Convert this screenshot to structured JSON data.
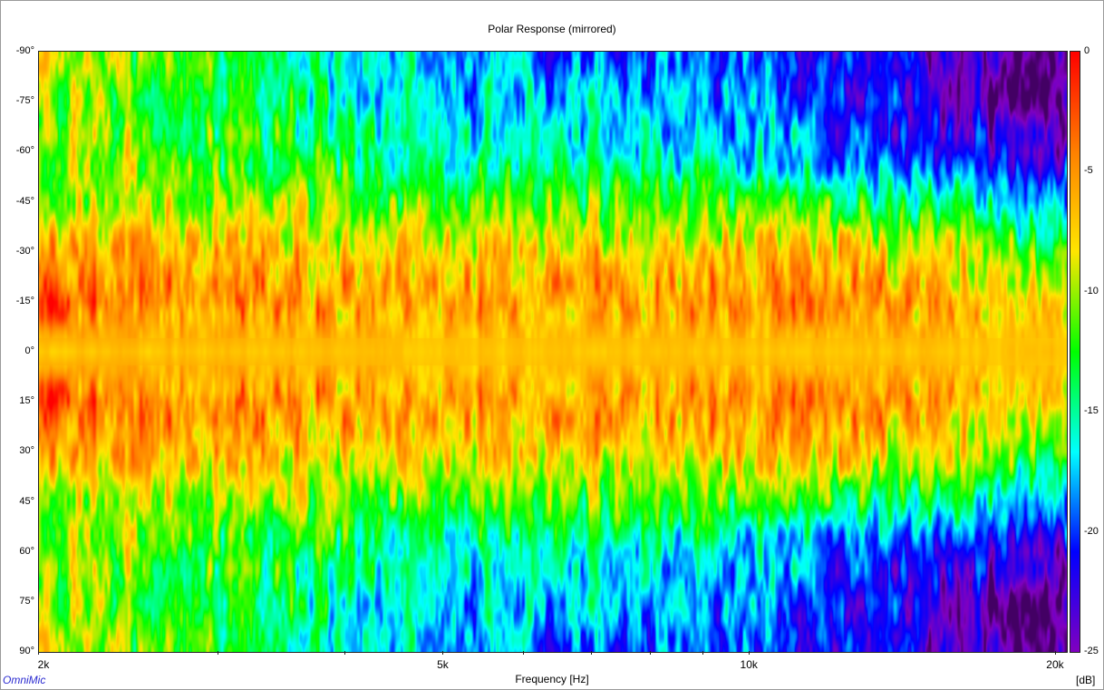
{
  "chart_data": {
    "type": "heatmap",
    "title": "Polar Response (mirrored)",
    "xlabel": "Frequency [Hz]",
    "ylabel": "",
    "x_scale": "log",
    "xlim": [
      2000,
      20500
    ],
    "ylim": [
      -90,
      90
    ],
    "x_tick_labels": [
      "2k",
      "5k",
      "10k",
      "20k"
    ],
    "x_tick_values": [
      2000,
      5000,
      10000,
      20000
    ],
    "y_tick_labels": [
      "-90°",
      "-75°",
      "-60°",
      "-45°",
      "-30°",
      "-15°",
      "0°",
      "15°",
      "30°",
      "45°",
      "60°",
      "75°",
      "90°"
    ],
    "y_tick_values": [
      -90,
      -75,
      -60,
      -45,
      -30,
      -15,
      0,
      15,
      30,
      45,
      60,
      75,
      90
    ],
    "colorbar": {
      "unit": "[dB]",
      "range": [
        -25,
        0
      ],
      "tick_labels": [
        "0",
        "-5",
        "-10",
        "-15",
        "-20",
        "-25"
      ],
      "tick_values": [
        0,
        -5,
        -10,
        -15,
        -20,
        -25
      ],
      "colormap": [
        "#ff0000",
        "#ff8000",
        "#ffe600",
        "#00ff00",
        "#00ffff",
        "#0000ff",
        "#8000c0",
        "#000000"
      ]
    },
    "level_profile_db": {
      "angles": [
        0,
        15,
        30,
        45,
        60,
        75,
        90
      ],
      "at_2k": [
        -7,
        -3,
        -6,
        -9,
        -9,
        -10,
        -9
      ],
      "at_5k": [
        -7,
        -6,
        -8,
        -12,
        -16,
        -17,
        -18
      ],
      "at_10k": [
        -7,
        -5,
        -7,
        -12,
        -17,
        -19,
        -20
      ],
      "at_15k": [
        -7,
        -5,
        -8,
        -14,
        -21,
        -23,
        -24
      ],
      "at_20k": [
        -7,
        -8,
        -12,
        -18,
        -24,
        -26,
        -26
      ]
    }
  },
  "brand": "OmniMic"
}
